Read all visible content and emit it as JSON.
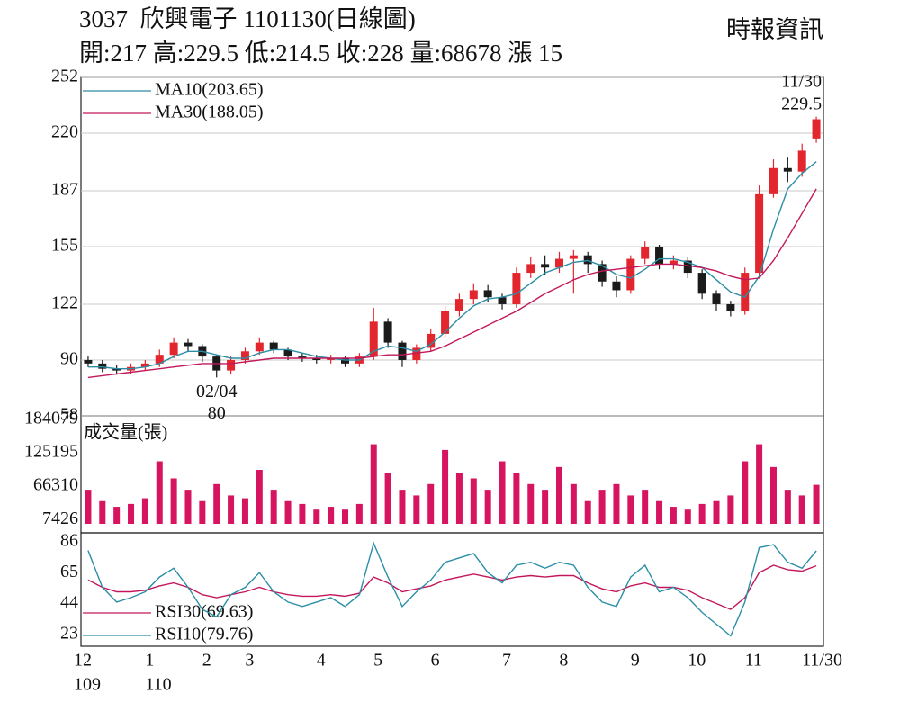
{
  "header": {
    "title": "3037  欣興電子 1101130(日線圖)",
    "info": "開:217 高:229.5 低:214.5 收:228 量:68678 漲 15",
    "source": "時報資訊"
  },
  "chart_data": [
    {
      "type": "candlestick",
      "open": [
        90,
        88,
        85,
        84,
        86,
        88,
        93,
        100,
        98,
        92,
        84,
        90,
        95,
        100,
        96,
        92,
        91,
        90,
        91,
        88,
        92,
        112,
        100,
        90,
        97,
        105,
        118,
        125,
        130,
        126,
        122,
        140,
        145,
        143,
        148,
        150,
        145,
        135,
        130,
        148,
        155,
        145,
        147,
        140,
        128,
        122,
        118,
        140,
        185,
        200,
        198,
        217
      ],
      "high": [
        92,
        90,
        87,
        88,
        90,
        96,
        103,
        102,
        99,
        93,
        92,
        97,
        103,
        101,
        97,
        94,
        93,
        93,
        92,
        94,
        120,
        114,
        101,
        99,
        108,
        121,
        128,
        134,
        133,
        128,
        143,
        149,
        150,
        152,
        153,
        152,
        147,
        138,
        150,
        158,
        156,
        150,
        149,
        142,
        130,
        124,
        143,
        190,
        205,
        206,
        214,
        229.5
      ],
      "low": [
        86,
        83,
        82,
        82,
        84,
        86,
        91,
        95,
        89,
        80,
        82,
        88,
        93,
        94,
        90,
        89,
        88,
        88,
        86,
        86,
        90,
        97,
        86,
        88,
        95,
        103,
        115,
        122,
        123,
        119,
        120,
        137,
        139,
        140,
        128,
        140,
        132,
        126,
        128,
        145,
        142,
        142,
        137,
        125,
        118,
        115,
        116,
        138,
        183,
        192,
        195,
        214.5
      ],
      "close": [
        88,
        85,
        84,
        86,
        88,
        93,
        100,
        98,
        92,
        84,
        90,
        95,
        100,
        96,
        92,
        91,
        90,
        91,
        88,
        92,
        112,
        100,
        90,
        97,
        105,
        118,
        125,
        130,
        126,
        122,
        140,
        145,
        143,
        148,
        150,
        145,
        135,
        130,
        148,
        155,
        145,
        147,
        140,
        128,
        122,
        118,
        140,
        185,
        200,
        198,
        210,
        228
      ],
      "up_color": "#e3262d",
      "down_color": "#1b1b1b",
      "ylim": [
        58,
        252
      ],
      "yticks": [
        58,
        90,
        122,
        155,
        187,
        220,
        252
      ],
      "grid": true,
      "series": [
        {
          "name": "MA10(203.65)",
          "color": "#2b8ea6",
          "values": [
            86,
            86,
            85,
            85,
            86,
            88,
            92,
            95,
            95,
            93,
            91,
            91,
            94,
            96,
            96,
            94,
            92,
            91,
            90,
            90,
            95,
            98,
            97,
            95,
            99,
            106,
            114,
            121,
            125,
            126,
            128,
            134,
            140,
            143,
            146,
            147,
            144,
            139,
            137,
            142,
            148,
            148,
            146,
            143,
            136,
            129,
            126,
            138,
            165,
            188,
            197,
            203.65
          ]
        },
        {
          "name": "MA30(188.05)",
          "color": "#c2185b",
          "values": [
            80,
            81,
            82,
            83,
            84,
            85,
            86,
            87,
            88,
            88,
            88,
            89,
            90,
            91,
            91,
            91,
            91,
            91,
            91,
            91,
            92,
            93,
            93,
            94,
            95,
            98,
            102,
            106,
            110,
            114,
            118,
            123,
            128,
            132,
            136,
            139,
            141,
            142,
            143,
            144,
            145,
            145,
            144,
            143,
            141,
            138,
            136,
            137,
            147,
            160,
            174,
            188.05
          ]
        }
      ],
      "annotations": [
        {
          "label": "11/30",
          "value": 229.5
        },
        {
          "label": "02/04",
          "value": 80
        }
      ]
    },
    {
      "type": "bar",
      "title": "成交量(張)",
      "color": "#d6145f",
      "values": [
        60000,
        40000,
        30000,
        35000,
        45000,
        110000,
        80000,
        60000,
        40000,
        70000,
        50000,
        45000,
        95000,
        60000,
        40000,
        35000,
        25000,
        30000,
        25000,
        35000,
        140000,
        90000,
        60000,
        50000,
        70000,
        130000,
        90000,
        80000,
        60000,
        110000,
        90000,
        70000,
        60000,
        100000,
        70000,
        40000,
        60000,
        70000,
        50000,
        60000,
        40000,
        30000,
        25000,
        35000,
        40000,
        50000,
        110000,
        140000,
        100000,
        60000,
        50000,
        68678
      ],
      "ylim": [
        0,
        190000
      ],
      "yticks": [
        7426,
        66310,
        125195,
        184079
      ]
    },
    {
      "type": "line",
      "categories": [
        "12",
        null,
        null,
        null,
        null,
        "1",
        null,
        null,
        null,
        "2",
        null,
        null,
        "3",
        null,
        null,
        null,
        null,
        "4",
        null,
        null,
        null,
        "5",
        null,
        null,
        null,
        "6",
        null,
        null,
        null,
        null,
        "7",
        null,
        null,
        null,
        "8",
        null,
        null,
        null,
        null,
        "9",
        null,
        null,
        null,
        "10",
        null,
        null,
        null,
        "11",
        null,
        null,
        null,
        "11/30"
      ],
      "sublabels": [
        "109",
        null,
        null,
        null,
        null,
        "110",
        null,
        null,
        null,
        null,
        null,
        null,
        null,
        null,
        null,
        null,
        null,
        null,
        null,
        null,
        null,
        null,
        null,
        null,
        null,
        null,
        null,
        null,
        null,
        null,
        null,
        null,
        null,
        null,
        null,
        null,
        null,
        null,
        null,
        null,
        null,
        null,
        null,
        null,
        null,
        null,
        null,
        null,
        null,
        null,
        null,
        null
      ],
      "ylim": [
        15,
        92
      ],
      "yticks": [
        23,
        44,
        65,
        86
      ],
      "series": [
        {
          "name": "RSI30(69.63)",
          "color": "#c2185b",
          "values": [
            60,
            55,
            52,
            52,
            53,
            56,
            58,
            55,
            50,
            48,
            50,
            52,
            55,
            52,
            50,
            49,
            49,
            50,
            49,
            51,
            62,
            58,
            52,
            54,
            56,
            60,
            62,
            64,
            62,
            60,
            62,
            63,
            62,
            63,
            63,
            58,
            54,
            52,
            56,
            58,
            55,
            55,
            53,
            48,
            44,
            40,
            48,
            65,
            70,
            67,
            66,
            69.63
          ]
        },
        {
          "name": "RSI10(79.76)",
          "color": "#2b8ea6",
          "values": [
            80,
            55,
            45,
            48,
            52,
            62,
            68,
            55,
            40,
            35,
            50,
            55,
            65,
            52,
            45,
            42,
            45,
            48,
            42,
            50,
            85,
            62,
            42,
            52,
            60,
            72,
            75,
            78,
            65,
            58,
            70,
            72,
            68,
            72,
            70,
            55,
            45,
            42,
            62,
            70,
            52,
            55,
            48,
            38,
            30,
            22,
            45,
            82,
            84,
            72,
            68,
            79.76
          ]
        }
      ]
    }
  ]
}
